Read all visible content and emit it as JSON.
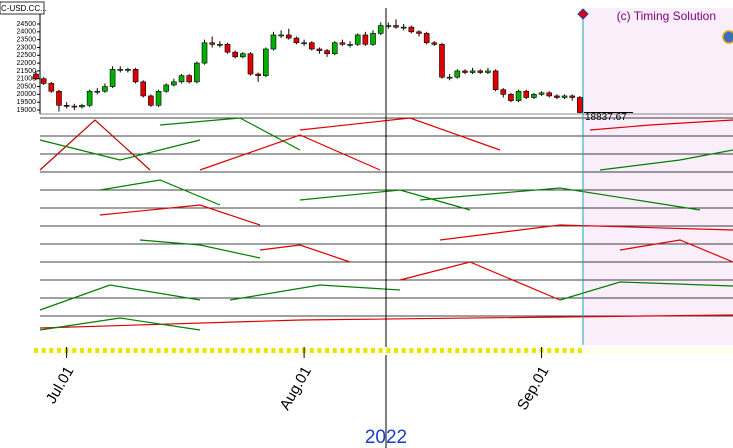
{
  "chart_data": {
    "type": "candlestick",
    "symbol": "C-USD.CC...",
    "copyright": "(c) Timing Solution",
    "last_price": 18837.67,
    "year_label": "2022",
    "ylim": [
      19000,
      24500
    ],
    "yticks": [
      19000,
      19500,
      20000,
      20500,
      21000,
      21500,
      22000,
      22500,
      23000,
      23500,
      24000,
      24500
    ],
    "x": [
      "2022-06-27",
      "2022-06-28",
      "2022-06-29",
      "2022-06-30",
      "2022-07-01",
      "2022-07-02",
      "2022-07-03",
      "2022-07-04",
      "2022-07-05",
      "2022-07-06",
      "2022-07-07",
      "2022-07-08",
      "2022-07-09",
      "2022-07-10",
      "2022-07-11",
      "2022-07-12",
      "2022-07-13",
      "2022-07-14",
      "2022-07-15",
      "2022-07-16",
      "2022-07-17",
      "2022-07-18",
      "2022-07-19",
      "2022-07-20",
      "2022-07-21",
      "2022-07-22",
      "2022-07-23",
      "2022-07-24",
      "2022-07-25",
      "2022-07-26",
      "2022-07-27",
      "2022-07-28",
      "2022-07-29",
      "2022-07-30",
      "2022-07-31",
      "2022-08-01",
      "2022-08-02",
      "2022-08-03",
      "2022-08-04",
      "2022-08-05",
      "2022-08-06",
      "2022-08-07",
      "2022-08-08",
      "2022-08-09",
      "2022-08-10",
      "2022-08-11",
      "2022-08-12",
      "2022-08-13",
      "2022-08-14",
      "2022-08-15",
      "2022-08-16",
      "2022-08-17",
      "2022-08-18",
      "2022-08-19",
      "2022-08-20",
      "2022-08-21",
      "2022-08-22",
      "2022-08-23",
      "2022-08-24",
      "2022-08-25",
      "2022-08-26",
      "2022-08-27",
      "2022-08-28",
      "2022-08-29",
      "2022-08-30",
      "2022-08-31",
      "2022-09-01",
      "2022-09-02",
      "2022-09-03",
      "2022-09-04",
      "2022-09-05",
      "2022-09-06"
    ],
    "xticks": [
      {
        "value": "2022-07-01",
        "label": "Jul.01"
      },
      {
        "value": "2022-08-01",
        "label": "Aug.01"
      },
      {
        "value": "2022-09-01",
        "label": "Sep.01"
      }
    ],
    "open": [
      21300,
      21000,
      20700,
      20200,
      19300,
      19250,
      19200,
      19300,
      20200,
      20200,
      20500,
      21600,
      21600,
      21600,
      20800,
      19900,
      19300,
      20200,
      20600,
      20800,
      21200,
      20800,
      22000,
      23300,
      23200,
      23200,
      22700,
      22400,
      22600,
      21300,
      21200,
      22900,
      23800,
      23800,
      23600,
      23300,
      23300,
      22900,
      22800,
      22600,
      23300,
      23200,
      23200,
      23800,
      23200,
      23900,
      24400,
      24400,
      24300,
      24300,
      24000,
      23900,
      23300,
      23200,
      21100,
      21100,
      21500,
      21400,
      21500,
      21400,
      21500,
      20300,
      20000,
      19600,
      20200,
      19800,
      20000,
      20100,
      19900,
      19800,
      19900,
      19800
    ],
    "high": [
      21500,
      21100,
      20800,
      20300,
      19500,
      19400,
      19400,
      20300,
      20400,
      20700,
      21800,
      21800,
      21700,
      21700,
      20900,
      20000,
      20300,
      20700,
      21000,
      21300,
      21300,
      22100,
      23500,
      23700,
      23400,
      23300,
      22800,
      22700,
      22700,
      21400,
      23000,
      24000,
      24100,
      24200,
      23700,
      23500,
      23400,
      23000,
      22900,
      23400,
      23500,
      23400,
      23900,
      24000,
      24100,
      24600,
      24600,
      24800,
      24500,
      24400,
      24100,
      24000,
      23400,
      23300,
      21300,
      21600,
      21600,
      21700,
      21600,
      21700,
      21600,
      20400,
      20100,
      20300,
      20300,
      20100,
      20200,
      20200,
      20000,
      20000,
      20000,
      19900
    ],
    "low": [
      20900,
      20600,
      20100,
      18900,
      19100,
      19000,
      19100,
      19200,
      20000,
      20100,
      20400,
      21400,
      21400,
      20700,
      19800,
      19200,
      19200,
      20100,
      20500,
      20700,
      20700,
      20700,
      21900,
      23000,
      23000,
      22600,
      22300,
      22300,
      21200,
      20800,
      21100,
      22800,
      23600,
      23500,
      23200,
      23100,
      22800,
      22600,
      22400,
      22500,
      23100,
      23000,
      23100,
      23100,
      23100,
      23800,
      24200,
      24200,
      24100,
      23900,
      23700,
      23200,
      23100,
      21000,
      20900,
      21000,
      21300,
      21300,
      21300,
      21300,
      20200,
      19800,
      19500,
      19500,
      19700,
      19700,
      19900,
      19800,
      19700,
      19700,
      19600,
      18800
    ],
    "close": [
      21000,
      20700,
      20200,
      19300,
      19250,
      19200,
      19300,
      20200,
      20200,
      20500,
      21600,
      21600,
      21600,
      20800,
      19900,
      19300,
      20200,
      20600,
      20800,
      21200,
      20800,
      22000,
      23300,
      23200,
      23200,
      22700,
      22400,
      22600,
      21300,
      21200,
      22900,
      23800,
      23800,
      23600,
      23300,
      23300,
      22900,
      22800,
      22600,
      23300,
      23200,
      23200,
      23800,
      23200,
      23900,
      24400,
      24400,
      24300,
      24300,
      24000,
      23900,
      23300,
      23200,
      21100,
      21100,
      21500,
      21400,
      21500,
      21400,
      21500,
      20300,
      20000,
      19600,
      20200,
      19800,
      20000,
      20100,
      19900,
      19800,
      19900,
      19800,
      18838
    ],
    "up_color": "#00b000",
    "down_color": "#e00000"
  }
}
